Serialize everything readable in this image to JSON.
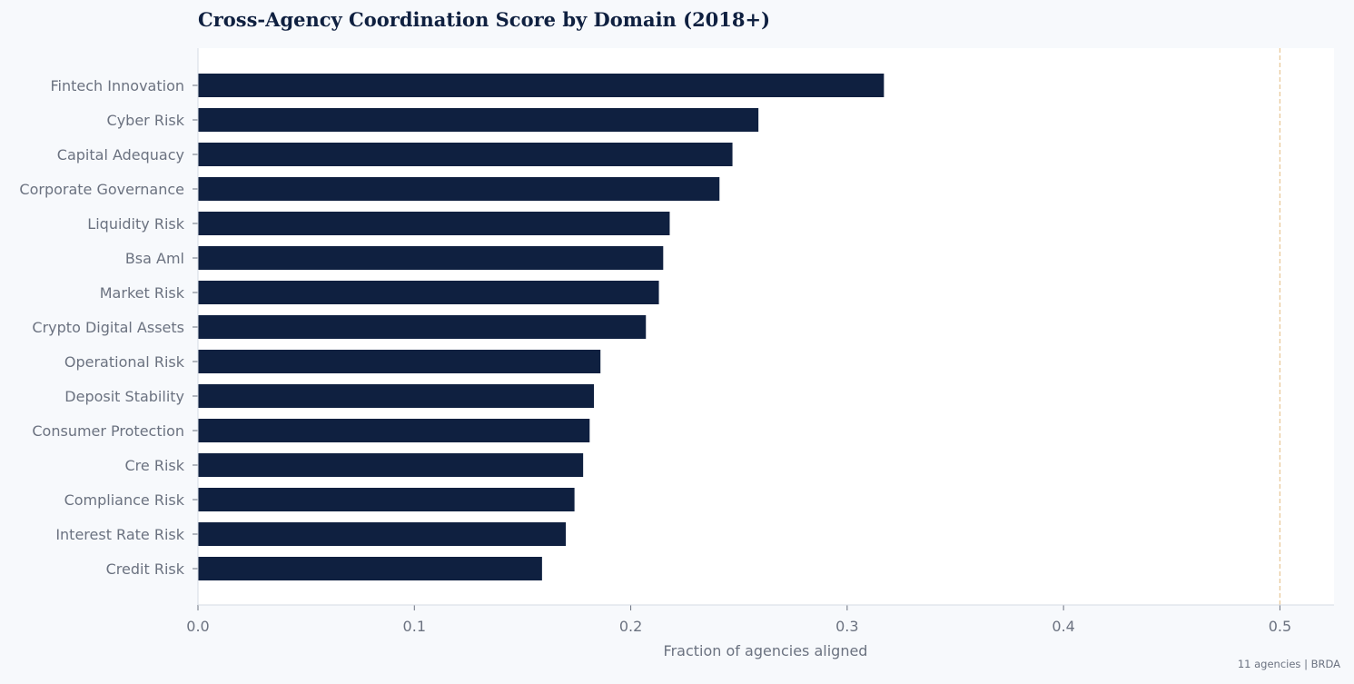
{
  "chart_data": {
    "type": "bar",
    "orientation": "horizontal",
    "title": "Cross-Agency Coordination Score by Domain (2018+)",
    "xlabel": "Fraction of agencies aligned",
    "ylabel": "",
    "categories": [
      "Fintech Innovation",
      "Cyber Risk",
      "Capital Adequacy",
      "Corporate Governance",
      "Liquidity Risk",
      "Bsa Aml",
      "Market Risk",
      "Crypto Digital Assets",
      "Operational Risk",
      "Deposit Stability",
      "Consumer Protection",
      "Cre Risk",
      "Compliance Risk",
      "Interest Rate Risk",
      "Credit Risk"
    ],
    "values": [
      0.317,
      0.259,
      0.247,
      0.241,
      0.218,
      0.215,
      0.213,
      0.207,
      0.186,
      0.183,
      0.181,
      0.178,
      0.174,
      0.17,
      0.159
    ],
    "xlim": [
      0,
      0.525
    ],
    "xticks": [
      0.0,
      0.1,
      0.2,
      0.3,
      0.4,
      0.5
    ],
    "xtick_labels": [
      "0.0",
      "0.1",
      "0.2",
      "0.3",
      "0.4",
      "0.5"
    ],
    "reference_line": {
      "x": 0.5,
      "style": "dashed",
      "color": "#e8c99a"
    },
    "grid": false,
    "legend": "none",
    "colors": {
      "bar": "#0f2040",
      "plot_background": "#ffffff",
      "page_background": "#f7f9fc",
      "text": "#6b7280"
    }
  },
  "footnote": "11 agencies | BRDA"
}
